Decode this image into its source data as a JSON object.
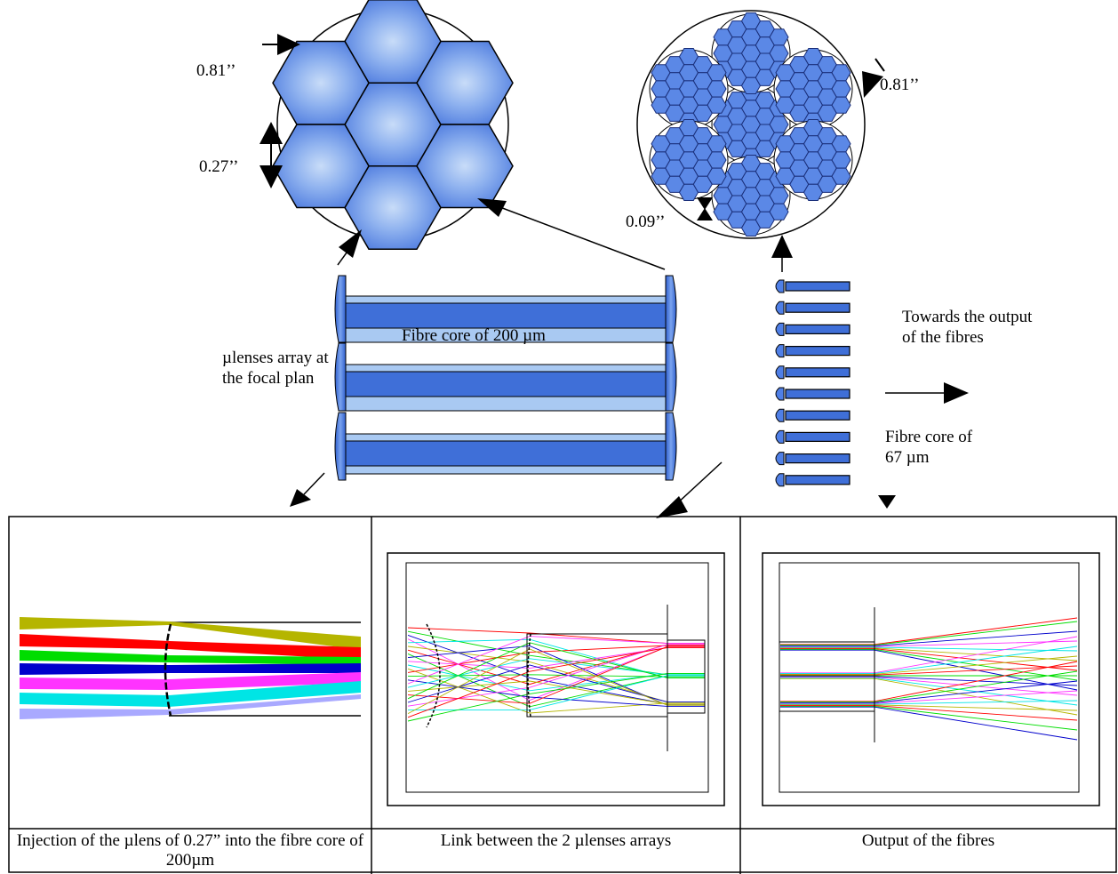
{
  "labels": {
    "pitch_top_left": "0.81’’",
    "lens_size": "0.27’’",
    "pitch_top_right": "0.81’’",
    "gap_right": "0.09’’",
    "microlens_array": "µlenses array at the focal plan",
    "fibre_core_200": "Fibre core of 200 µm",
    "towards_output": "Towards the output of the fibres",
    "fibre_core_67": "Fibre core of 67 µm"
  },
  "captions": {
    "injection": "Injection of the µlens of 0.27” into the fibre core of 200µm",
    "link": "Link between the 2 µlenses arrays",
    "output": "Output of the fibres"
  },
  "colors": {
    "lens_blue": "#4f7fe6",
    "lens_light": "#a9c9f2",
    "fibre_blue": "#3f6fd8",
    "ray_yellow": "#b5b500",
    "ray_red": "#ff0000",
    "ray_green": "#00dd00",
    "ray_blue": "#0000cc",
    "ray_magenta": "#ff33ff",
    "ray_cyan": "#00e5e5"
  }
}
